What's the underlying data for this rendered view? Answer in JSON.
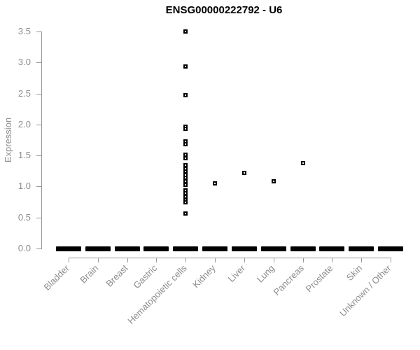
{
  "chart_data": {
    "type": "scatter",
    "variant": "strip-plot",
    "title": "ENSG00000222792 - U6",
    "xlabel": "",
    "ylabel": "Expression",
    "ylim": [
      0.0,
      3.5
    ],
    "yticks": [
      0.0,
      0.5,
      1.0,
      1.5,
      2.0,
      2.5,
      3.0,
      3.5
    ],
    "grid": false,
    "legend": false,
    "marker": "open-square",
    "point_color": "#000000",
    "axis_color": "#8c8c8c",
    "categories": [
      "Bladder",
      "Brain",
      "Breast",
      "Gastric",
      "Hematopoietic cells",
      "Kidney",
      "Liver",
      "Lung",
      "Pancreas",
      "Prostate",
      "Skin",
      "Unknown / Other"
    ],
    "series": [
      {
        "category": "Bladder",
        "nonzero_values": [],
        "zero_cluster": true
      },
      {
        "category": "Brain",
        "nonzero_values": [],
        "zero_cluster": true
      },
      {
        "category": "Breast",
        "nonzero_values": [],
        "zero_cluster": true
      },
      {
        "category": "Gastric",
        "nonzero_values": [],
        "zero_cluster": true
      },
      {
        "category": "Hematopoietic cells",
        "nonzero_values": [
          3.5,
          2.93,
          2.47,
          1.97,
          1.93,
          1.73,
          1.68,
          1.51,
          1.46,
          1.34,
          1.29,
          1.24,
          1.19,
          1.14,
          1.08,
          1.03,
          0.94,
          0.89,
          0.84,
          0.78,
          0.74,
          0.57
        ],
        "zero_cluster": true
      },
      {
        "category": "Kidney",
        "nonzero_values": [
          1.05
        ],
        "zero_cluster": true
      },
      {
        "category": "Liver",
        "nonzero_values": [
          1.22
        ],
        "zero_cluster": true
      },
      {
        "category": "Lung",
        "nonzero_values": [
          1.08
        ],
        "zero_cluster": true
      },
      {
        "category": "Pancreas",
        "nonzero_values": [
          1.38
        ],
        "zero_cluster": true
      },
      {
        "category": "Prostate",
        "nonzero_values": [],
        "zero_cluster": true
      },
      {
        "category": "Skin",
        "nonzero_values": [],
        "zero_cluster": true
      },
      {
        "category": "Unknown / Other",
        "nonzero_values": [],
        "zero_cluster": true
      }
    ],
    "zero_cluster_note": "Every category has a dense cluster of overlapping points at expression 0.0 drawn as a thick black dash"
  }
}
